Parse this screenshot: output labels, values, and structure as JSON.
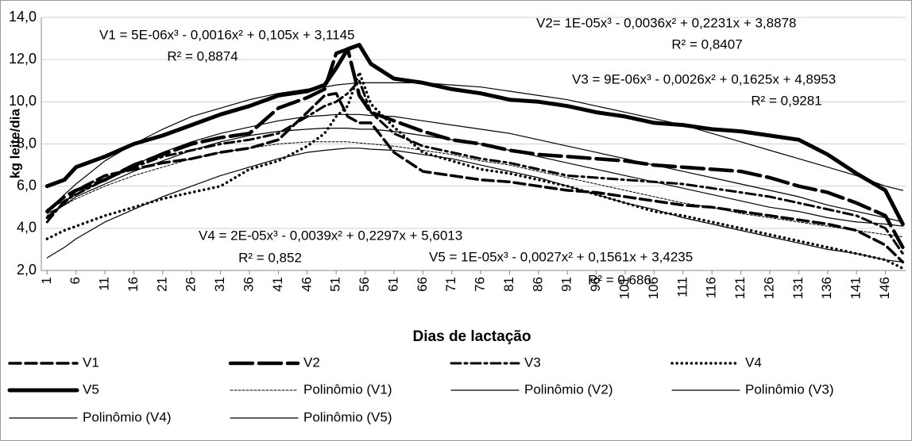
{
  "chart_data": {
    "type": "line",
    "x_label": "Dias de lactação",
    "y_label": "kg leite/dia",
    "x": [
      1,
      4,
      6,
      11,
      16,
      21,
      26,
      31,
      36,
      41,
      46,
      49,
      51,
      53,
      55,
      57,
      61,
      66,
      71,
      76,
      81,
      86,
      91,
      96,
      101,
      106,
      111,
      116,
      121,
      126,
      131,
      136,
      141,
      146,
      149
    ],
    "xlim": [
      0,
      149.5
    ],
    "xticks": [
      1,
      6,
      11,
      16,
      21,
      26,
      31,
      36,
      41,
      46,
      51,
      56,
      61,
      66,
      71,
      76,
      81,
      86,
      91,
      96,
      101,
      106,
      111,
      116,
      121,
      126,
      131,
      136,
      141,
      146
    ],
    "ylim": [
      2,
      14
    ],
    "yticks": [
      {
        "value": 2,
        "label": "2,0"
      },
      {
        "value": 4,
        "label": "4,0"
      },
      {
        "value": 6,
        "label": "6,0"
      },
      {
        "value": 8,
        "label": "8,0"
      },
      {
        "value": 10,
        "label": "10,0"
      },
      {
        "value": 12,
        "label": "12,0"
      },
      {
        "value": 14,
        "label": "14,0"
      }
    ],
    "grid": true,
    "legend": "bottom",
    "annotations": [
      "V1 = 5E-06x³ - 0,0016x² + 0,105x + 3,1145",
      "R² = 0,8874",
      "V2= 1E-05x³ - 0,0036x² + 0,2231x + 3,8878",
      "R² = 0,8407",
      "V3 = 9E-06x³ - 0,0026x² + 0,1625x + 4,8953",
      "R² = 0,9281",
      "V4 = 2E-05x³ - 0,0039x² + 0,2297x + 5,6013",
      "R² = 0,852",
      "V5 = 1E-05x³ - 0,0027x² + 0,1561x + 3,4235",
      "R² = 0,686"
    ],
    "series": [
      {
        "name": "V1",
        "color": "#000000",
        "width": 3.5,
        "dash": "14 6",
        "values": [
          4.5,
          5.2,
          5.8,
          6.5,
          6.8,
          7.1,
          7.3,
          7.6,
          7.8,
          8.2,
          9.5,
          10.3,
          10.4,
          9.3,
          9.0,
          9.0,
          7.6,
          6.7,
          6.5,
          6.3,
          6.2,
          6.0,
          5.8,
          5.7,
          5.5,
          5.3,
          5.1,
          5.0,
          4.8,
          4.6,
          4.4,
          4.2,
          3.9,
          3.2,
          2.4
        ]
      },
      {
        "name": "V2",
        "color": "#000000",
        "width": 4.5,
        "dash": "28 8",
        "values": [
          4.8,
          5.5,
          5.8,
          6.3,
          7.0,
          7.5,
          8.0,
          8.3,
          8.5,
          9.7,
          10.2,
          10.6,
          12.3,
          12.5,
          10.3,
          9.5,
          9.1,
          8.6,
          8.2,
          8.0,
          7.7,
          7.5,
          7.4,
          7.3,
          7.2,
          7.0,
          6.9,
          6.8,
          6.7,
          6.4,
          6.0,
          5.7,
          5.2,
          4.6,
          3.1
        ]
      },
      {
        "name": "V3",
        "color": "#000000",
        "width": 3,
        "dash": "12 5 3 5",
        "values": [
          4.3,
          5.3,
          5.6,
          6.3,
          6.9,
          7.4,
          7.7,
          8.0,
          8.2,
          8.5,
          9.3,
          9.8,
          10.0,
          10.4,
          11.0,
          9.5,
          8.5,
          7.9,
          7.6,
          7.3,
          7.1,
          6.8,
          6.5,
          6.4,
          6.3,
          6.2,
          6.1,
          5.9,
          5.7,
          5.5,
          5.2,
          4.9,
          4.6,
          4.0,
          2.8
        ]
      },
      {
        "name": "V4",
        "color": "#000000",
        "width": 3.5,
        "dash": "0.1 6",
        "values": [
          3.5,
          3.9,
          4.1,
          4.6,
          5.0,
          5.4,
          5.7,
          6.0,
          6.8,
          7.2,
          7.9,
          8.5,
          9.3,
          9.8,
          11.4,
          9.9,
          8.8,
          7.6,
          7.2,
          6.8,
          6.6,
          6.3,
          6.0,
          5.6,
          5.2,
          4.8,
          4.6,
          4.3,
          4.0,
          3.7,
          3.4,
          3.1,
          2.8,
          2.5,
          2.1
        ]
      },
      {
        "name": "V5",
        "color": "#000000",
        "width": 5,
        "dash": "none",
        "values": [
          6.0,
          6.3,
          6.9,
          7.4,
          8.0,
          8.4,
          8.9,
          9.4,
          9.8,
          10.3,
          10.5,
          10.8,
          11.6,
          12.5,
          12.7,
          11.8,
          11.1,
          10.9,
          10.6,
          10.4,
          10.1,
          10.0,
          9.8,
          9.5,
          9.3,
          9.0,
          8.9,
          8.7,
          8.6,
          8.4,
          8.2,
          7.5,
          6.6,
          5.8,
          4.2
        ]
      },
      {
        "name": "Polinômio (V1)",
        "color": "#000000",
        "width": 1,
        "dash": "3 2",
        "values": [
          4.6,
          5.1,
          5.4,
          6.0,
          6.5,
          6.9,
          7.3,
          7.6,
          7.8,
          8.0,
          8.1,
          8.1,
          8.1,
          8.1,
          8.05,
          8.0,
          7.9,
          7.7,
          7.5,
          7.2,
          7.0,
          6.7,
          6.4,
          6.1,
          5.8,
          5.5,
          5.2,
          5.0,
          4.7,
          4.5,
          4.3,
          4.1,
          3.9,
          3.7,
          3.6
        ]
      },
      {
        "name": "Polinômio (V2)",
        "color": "#000000",
        "width": 1.2,
        "dash": "none",
        "values": [
          4.9,
          5.3,
          5.6,
          6.3,
          7.0,
          7.6,
          8.1,
          8.5,
          8.8,
          9.1,
          9.3,
          9.35,
          9.4,
          9.4,
          9.4,
          9.35,
          9.3,
          9.1,
          8.9,
          8.7,
          8.5,
          8.2,
          7.9,
          7.6,
          7.3,
          7.0,
          6.7,
          6.4,
          6.1,
          5.8,
          5.5,
          5.1,
          4.8,
          4.5,
          4.3
        ]
      },
      {
        "name": "Polinômio (V3)",
        "color": "#000000",
        "width": 1.2,
        "dash": "none",
        "values": [
          4.7,
          5.1,
          5.5,
          6.1,
          6.7,
          7.2,
          7.7,
          8.1,
          8.4,
          8.6,
          8.7,
          8.75,
          8.75,
          8.75,
          8.7,
          8.7,
          8.6,
          8.4,
          8.2,
          8.0,
          7.7,
          7.4,
          7.1,
          6.8,
          6.5,
          6.2,
          5.9,
          5.6,
          5.3,
          5.0,
          4.8,
          4.5,
          4.3,
          4.2,
          4.1
        ]
      },
      {
        "name": "Polinômio (V4)",
        "color": "#000000",
        "width": 1.2,
        "dash": "none",
        "values": [
          2.6,
          3.1,
          3.5,
          4.3,
          4.9,
          5.5,
          6.0,
          6.5,
          6.9,
          7.3,
          7.6,
          7.7,
          7.75,
          7.8,
          7.8,
          7.75,
          7.7,
          7.5,
          7.3,
          7.0,
          6.7,
          6.4,
          6.0,
          5.6,
          5.2,
          4.9,
          4.5,
          4.2,
          3.9,
          3.6,
          3.3,
          3.0,
          2.8,
          2.5,
          2.4
        ]
      },
      {
        "name": "Polinômio (V5)",
        "color": "#000000",
        "width": 1.2,
        "dash": "none",
        "values": [
          4.8,
          5.6,
          6.1,
          7.2,
          8.0,
          8.7,
          9.3,
          9.7,
          10.1,
          10.4,
          10.6,
          10.7,
          10.8,
          10.85,
          10.9,
          10.9,
          10.9,
          10.9,
          10.8,
          10.7,
          10.5,
          10.3,
          10.1,
          9.8,
          9.5,
          9.2,
          8.9,
          8.5,
          8.1,
          7.7,
          7.3,
          6.9,
          6.5,
          6.0,
          5.8
        ]
      }
    ]
  }
}
